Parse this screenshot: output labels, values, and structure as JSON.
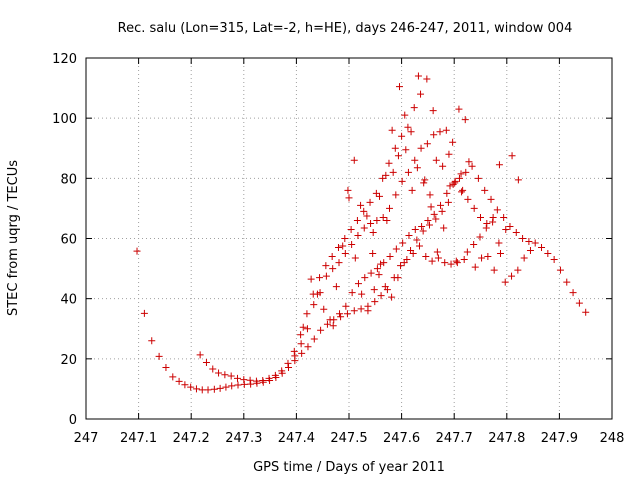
{
  "chart_data": {
    "type": "scatter",
    "title": "Rec. salu (Lon=315, Lat=-2, h=HE), days 246-247, 2011, window 004",
    "xlabel": "GPS time / Days of year 2011",
    "ylabel": "STEC from uqrg / TECUs",
    "xlim": [
      247,
      248
    ],
    "ylim": [
      0,
      120
    ],
    "x_ticks": [
      "247",
      "247.1",
      "247.2",
      "247.3",
      "247.4",
      "247.5",
      "247.6",
      "247.7",
      "247.8",
      "247.9",
      "248"
    ],
    "y_ticks": [
      "0",
      "20",
      "40",
      "60",
      "80",
      "100",
      "120"
    ],
    "grid": true,
    "marker": "plus",
    "color": "#cc0000",
    "points": [
      [
        247.097,
        55.8
      ],
      [
        247.111,
        35.1
      ],
      [
        247.125,
        26.0
      ],
      [
        247.139,
        20.8
      ],
      [
        247.152,
        17.1
      ],
      [
        247.165,
        14.0
      ],
      [
        247.177,
        12.5
      ],
      [
        247.188,
        11.4
      ],
      [
        247.199,
        10.6
      ],
      [
        247.21,
        10.0
      ],
      [
        247.221,
        9.7
      ],
      [
        247.232,
        9.7
      ],
      [
        247.244,
        9.9
      ],
      [
        247.255,
        10.2
      ],
      [
        247.266,
        10.6
      ],
      [
        247.277,
        11.0
      ],
      [
        247.289,
        11.3
      ],
      [
        247.301,
        11.5
      ],
      [
        247.313,
        11.6
      ],
      [
        247.325,
        11.9
      ],
      [
        247.337,
        12.2
      ],
      [
        247.349,
        12.8
      ],
      [
        247.361,
        13.8
      ],
      [
        247.373,
        15.2
      ],
      [
        247.385,
        17.1
      ],
      [
        247.397,
        19.4
      ],
      [
        247.41,
        21.8
      ],
      [
        247.422,
        24.0
      ],
      [
        247.434,
        26.6
      ],
      [
        247.446,
        29.5
      ],
      [
        247.459,
        31.5
      ],
      [
        247.471,
        33.0
      ],
      [
        247.484,
        34.0
      ],
      [
        247.497,
        35.0
      ],
      [
        247.51,
        36.0
      ],
      [
        247.523,
        36.6
      ],
      [
        247.536,
        37.5
      ],
      [
        247.549,
        39.0
      ],
      [
        247.561,
        41.0
      ],
      [
        247.573,
        43.0
      ],
      [
        247.586,
        47.0
      ],
      [
        247.598,
        51.0
      ],
      [
        247.61,
        53.0
      ],
      [
        247.622,
        55.0
      ],
      [
        247.634,
        57.5
      ],
      [
        247.646,
        54.0
      ],
      [
        247.658,
        52.5
      ],
      [
        247.67,
        53.5
      ],
      [
        247.682,
        52.0
      ],
      [
        247.694,
        51.5
      ],
      [
        247.706,
        52.0
      ],
      [
        247.719,
        53.0
      ],
      [
        247.217,
        21.3
      ],
      [
        247.229,
        18.8
      ],
      [
        247.241,
        16.6
      ],
      [
        247.252,
        15.3
      ],
      [
        247.264,
        14.7
      ],
      [
        247.276,
        14.3
      ],
      [
        247.288,
        13.5
      ],
      [
        247.3,
        13.1
      ],
      [
        247.312,
        12.9
      ],
      [
        247.324,
        12.6
      ],
      [
        247.336,
        12.8
      ],
      [
        247.348,
        13.5
      ],
      [
        247.36,
        14.5
      ],
      [
        247.372,
        16.0
      ],
      [
        247.384,
        18.5
      ],
      [
        247.396,
        22.5
      ],
      [
        247.408,
        28.0
      ],
      [
        247.42,
        35.0
      ],
      [
        247.432,
        41.5
      ],
      [
        247.444,
        47.0
      ],
      [
        247.456,
        51.0
      ],
      [
        247.468,
        54.0
      ],
      [
        247.48,
        57.0
      ],
      [
        247.492,
        60.0
      ],
      [
        247.504,
        63.0
      ],
      [
        247.516,
        66.0
      ],
      [
        247.528,
        69.0
      ],
      [
        247.54,
        72.0
      ],
      [
        247.552,
        75.0
      ],
      [
        247.564,
        80.0
      ],
      [
        247.576,
        85.0
      ],
      [
        247.588,
        90.0
      ],
      [
        247.6,
        94.0
      ],
      [
        247.612,
        97.0
      ],
      [
        247.624,
        103.5
      ],
      [
        247.636,
        108.0
      ],
      [
        247.648,
        113.0
      ],
      [
        247.66,
        102.5
      ],
      [
        247.397,
        21.0
      ],
      [
        247.409,
        25.0
      ],
      [
        247.421,
        30.0
      ],
      [
        247.433,
        38.0
      ],
      [
        247.445,
        42.0
      ],
      [
        247.457,
        47.5
      ],
      [
        247.469,
        50.0
      ],
      [
        247.481,
        52.0
      ],
      [
        247.493,
        55.0
      ],
      [
        247.505,
        58.0
      ],
      [
        247.517,
        61.0
      ],
      [
        247.529,
        63.5
      ],
      [
        247.541,
        65.0
      ],
      [
        247.553,
        66.0
      ],
      [
        247.565,
        67.0
      ],
      [
        247.577,
        70.0
      ],
      [
        247.589,
        74.5
      ],
      [
        247.601,
        79.0
      ],
      [
        247.613,
        82.0
      ],
      [
        247.625,
        86.0
      ],
      [
        247.637,
        90.0
      ],
      [
        247.649,
        91.5
      ],
      [
        247.661,
        94.5
      ],
      [
        247.673,
        95.5
      ],
      [
        247.685,
        96.0
      ],
      [
        247.697,
        92.0
      ],
      [
        247.709,
        103.0
      ],
      [
        247.721,
        99.5
      ],
      [
        247.47,
        31.0
      ],
      [
        247.482,
        35.0
      ],
      [
        247.494,
        37.5
      ],
      [
        247.506,
        42.0
      ],
      [
        247.518,
        45.0
      ],
      [
        247.53,
        47.0
      ],
      [
        247.542,
        48.5
      ],
      [
        247.554,
        50.0
      ],
      [
        247.566,
        52.0
      ],
      [
        247.578,
        54.0
      ],
      [
        247.59,
        56.5
      ],
      [
        247.602,
        58.5
      ],
      [
        247.614,
        61.0
      ],
      [
        247.626,
        63.0
      ],
      [
        247.638,
        64.0
      ],
      [
        247.65,
        66.0
      ],
      [
        247.662,
        68.0
      ],
      [
        247.674,
        71.0
      ],
      [
        247.686,
        75.0
      ],
      [
        247.698,
        78.0
      ],
      [
        247.71,
        80.0
      ],
      [
        247.722,
        82.0
      ],
      [
        247.734,
        84.0
      ],
      [
        247.746,
        80.0
      ],
      [
        247.758,
        76.0
      ],
      [
        247.77,
        73.0
      ],
      [
        247.782,
        69.5
      ],
      [
        247.794,
        67.0
      ],
      [
        247.806,
        64.0
      ],
      [
        247.818,
        62.0
      ],
      [
        247.83,
        60.0
      ],
      [
        247.842,
        59.0
      ],
      [
        247.854,
        58.5
      ],
      [
        247.866,
        57.0
      ],
      [
        247.878,
        55.0
      ],
      [
        247.89,
        53.0
      ],
      [
        247.902,
        49.5
      ],
      [
        247.914,
        45.5
      ],
      [
        247.926,
        42.0
      ],
      [
        247.938,
        38.5
      ],
      [
        247.95,
        35.5
      ],
      [
        247.498,
        76.0
      ],
      [
        247.51,
        86.0
      ],
      [
        247.522,
        71.0
      ],
      [
        247.534,
        67.5
      ],
      [
        247.546,
        62.0
      ],
      [
        247.558,
        74.0
      ],
      [
        247.57,
        81.0
      ],
      [
        247.582,
        96.0
      ],
      [
        247.594,
        87.5
      ],
      [
        247.606,
        101.0
      ],
      [
        247.618,
        95.5
      ],
      [
        247.63,
        83.5
      ],
      [
        247.642,
        78.5
      ],
      [
        247.654,
        74.5
      ],
      [
        247.666,
        86.0
      ],
      [
        247.678,
        84.0
      ],
      [
        247.69,
        88.0
      ],
      [
        247.702,
        79.0
      ],
      [
        247.714,
        75.5
      ],
      [
        247.726,
        73.0
      ],
      [
        247.738,
        70.0
      ],
      [
        247.75,
        67.0
      ],
      [
        247.762,
        65.0
      ],
      [
        247.774,
        67.0
      ],
      [
        247.786,
        84.5
      ],
      [
        247.798,
        63.0
      ],
      [
        247.81,
        87.5
      ],
      [
        247.822,
        79.5
      ],
      [
        247.545,
        55.0
      ],
      [
        247.557,
        48.0
      ],
      [
        247.569,
        44.0
      ],
      [
        247.581,
        40.5
      ],
      [
        247.593,
        47.0
      ],
      [
        247.605,
        52.0
      ],
      [
        247.617,
        56.0
      ],
      [
        247.629,
        59.5
      ],
      [
        247.641,
        62.5
      ],
      [
        247.653,
        64.5
      ],
      [
        247.665,
        66.5
      ],
      [
        247.677,
        69.0
      ],
      [
        247.689,
        72.0
      ],
      [
        247.701,
        78.5
      ],
      [
        247.713,
        81.5
      ],
      [
        247.725,
        55.5
      ],
      [
        247.737,
        58.0
      ],
      [
        247.749,
        60.5
      ],
      [
        247.761,
        63.5
      ],
      [
        247.773,
        65.5
      ],
      [
        247.785,
        58.5
      ],
      [
        247.797,
        45.5
      ],
      [
        247.809,
        47.5
      ],
      [
        247.821,
        49.5
      ],
      [
        247.833,
        53.5
      ],
      [
        247.845,
        56.0
      ],
      [
        247.413,
        30.5
      ],
      [
        247.428,
        46.5
      ],
      [
        247.44,
        41.5
      ],
      [
        247.452,
        36.5
      ],
      [
        247.464,
        33.0
      ],
      [
        247.476,
        44.0
      ],
      [
        247.488,
        57.5
      ],
      [
        247.5,
        73.5
      ],
      [
        247.512,
        53.5
      ],
      [
        247.524,
        41.5
      ],
      [
        247.536,
        36.0
      ],
      [
        247.548,
        43.0
      ],
      [
        247.56,
        51.5
      ],
      [
        247.572,
        66.0
      ],
      [
        247.584,
        82.0
      ],
      [
        247.596,
        110.5
      ],
      [
        247.608,
        89.5
      ],
      [
        247.62,
        76.0
      ],
      [
        247.632,
        114.0
      ],
      [
        247.644,
        79.5
      ],
      [
        247.656,
        70.5
      ],
      [
        247.668,
        55.5
      ],
      [
        247.68,
        63.5
      ],
      [
        247.692,
        77.5
      ],
      [
        247.704,
        52.5
      ],
      [
        247.716,
        76.0
      ],
      [
        247.728,
        85.5
      ],
      [
        247.74,
        50.5
      ],
      [
        247.752,
        53.5
      ],
      [
        247.764,
        54.0
      ],
      [
        247.776,
        49.5
      ],
      [
        247.788,
        55.0
      ]
    ]
  }
}
